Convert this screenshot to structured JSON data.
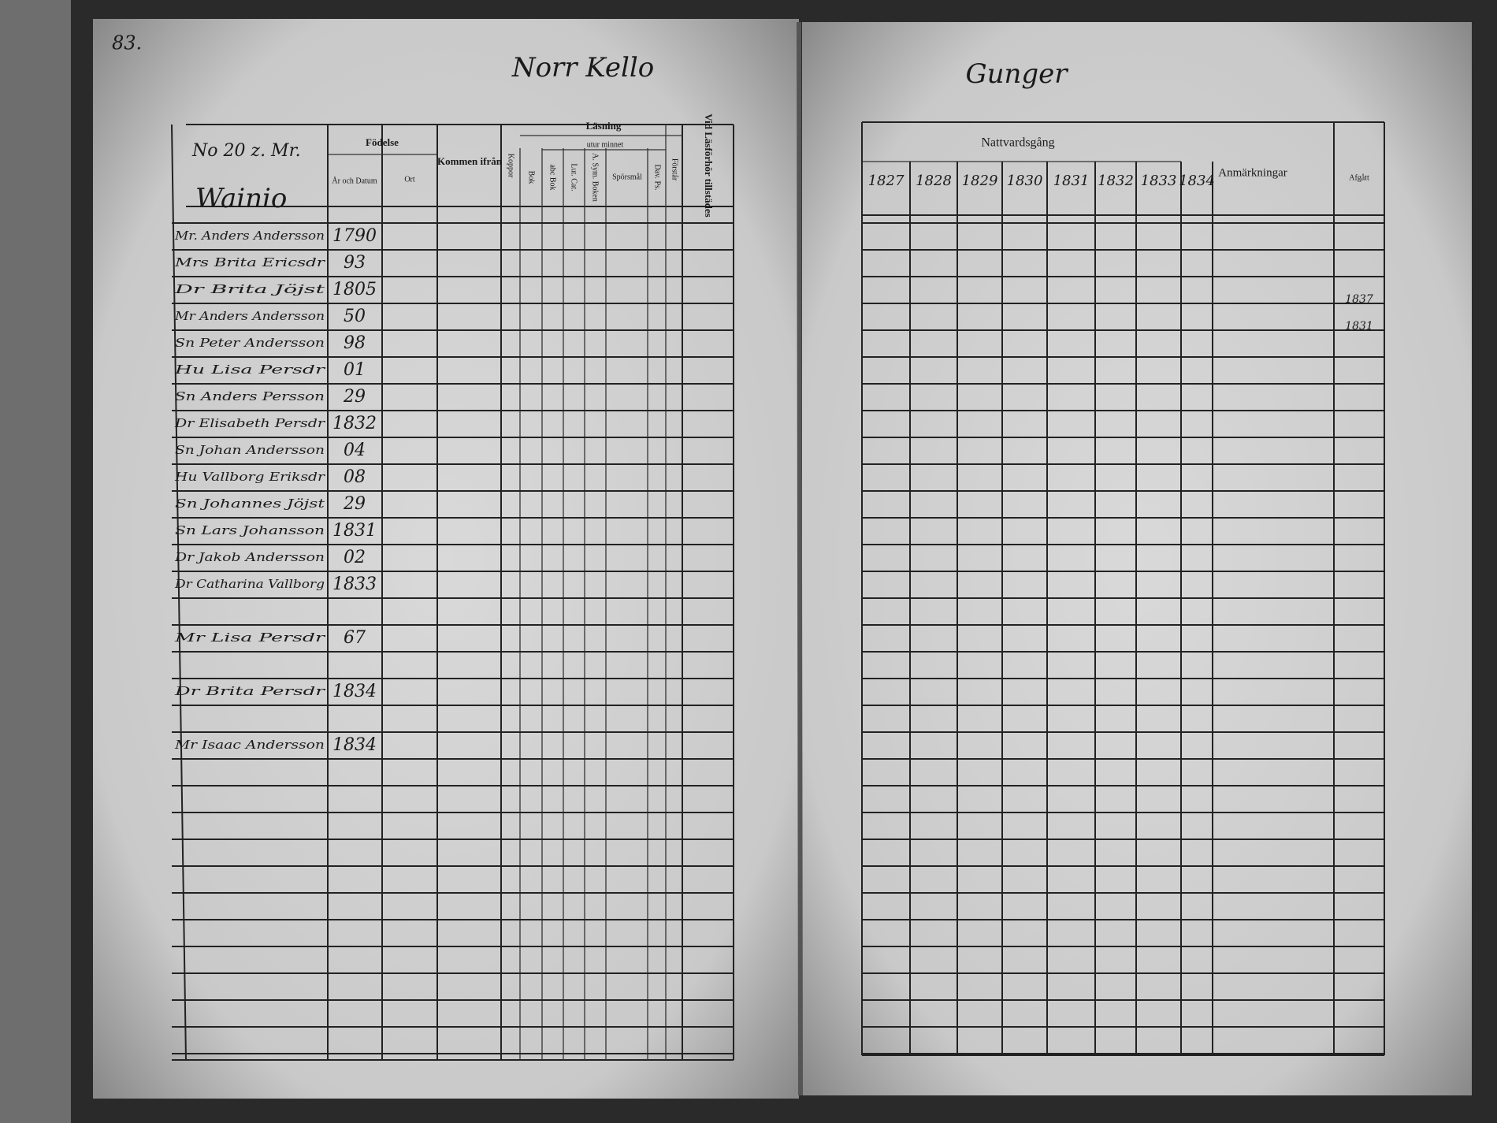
{
  "page_number": "83.",
  "left_page": {
    "heading": "Norr Kello",
    "household": {
      "number": "No 20 z. Mr.",
      "name": "Wainio"
    },
    "headers": {
      "birth": "Födelse",
      "birth_date": "År och Datum",
      "birth_place": "Ort",
      "moved_from": "Kommen ifrån",
      "smallpox": "Koppor",
      "reading": "Läsning",
      "by_heart": "utur minnet",
      "book": "Bok",
      "abc_book": "abc Bok",
      "catechism": "Lut. Cat.",
      "symbol_book": "A. Sym. Boken",
      "questions": "Spörsmål",
      "psalms": "Dav. Ps.",
      "understands": "Förstår",
      "attended": "Vid Läsförhör tillstädes"
    },
    "rows": [
      {
        "name": "Mr. Anders Andersson",
        "birth": "1790"
      },
      {
        "name": "Mrs Brita Ericsdr",
        "birth": "93"
      },
      {
        "name": "Dr Brita Jöjst",
        "birth": "1805"
      },
      {
        "name": "Mr Anders Andersson",
        "birth": "50"
      },
      {
        "name": "Sn Peter Andersson",
        "birth": "98"
      },
      {
        "name": "Hu Lisa Persdr",
        "birth": "01"
      },
      {
        "name": "Sn Anders Persson",
        "birth": "29"
      },
      {
        "name": "Dr Elisabeth Persdr",
        "birth": "1832"
      },
      {
        "name": "Sn Johan Andersson",
        "birth": "04"
      },
      {
        "name": "Hu Vallborg Eriksdr",
        "birth": "08"
      },
      {
        "name": "Sn Johannes Jöjst",
        "birth": "29"
      },
      {
        "name": "Sn Lars Johansson",
        "birth": "1831"
      },
      {
        "name": "Dr Jakob Andersson",
        "birth": "02"
      },
      {
        "name": "Dr Catharina Vallborg",
        "birth": "1833"
      },
      {
        "name": "Mr Lisa Persdr",
        "birth": "67"
      },
      {
        "name": "Dr Brita Persdr",
        "birth": "1834"
      },
      {
        "name": "Mr Isaac Andersson",
        "birth": "1834"
      }
    ]
  },
  "right_page": {
    "heading": "Gunger",
    "headers": {
      "communion": "Nattvardsgång",
      "years": [
        "1827",
        "1828",
        "1829",
        "1830",
        "1831",
        "1832",
        "1833",
        "1834"
      ],
      "remarks": "Anmärkningar",
      "departed": "Afgått"
    },
    "notes": [
      {
        "row": "1837"
      },
      {
        "row": "1831"
      }
    ]
  }
}
